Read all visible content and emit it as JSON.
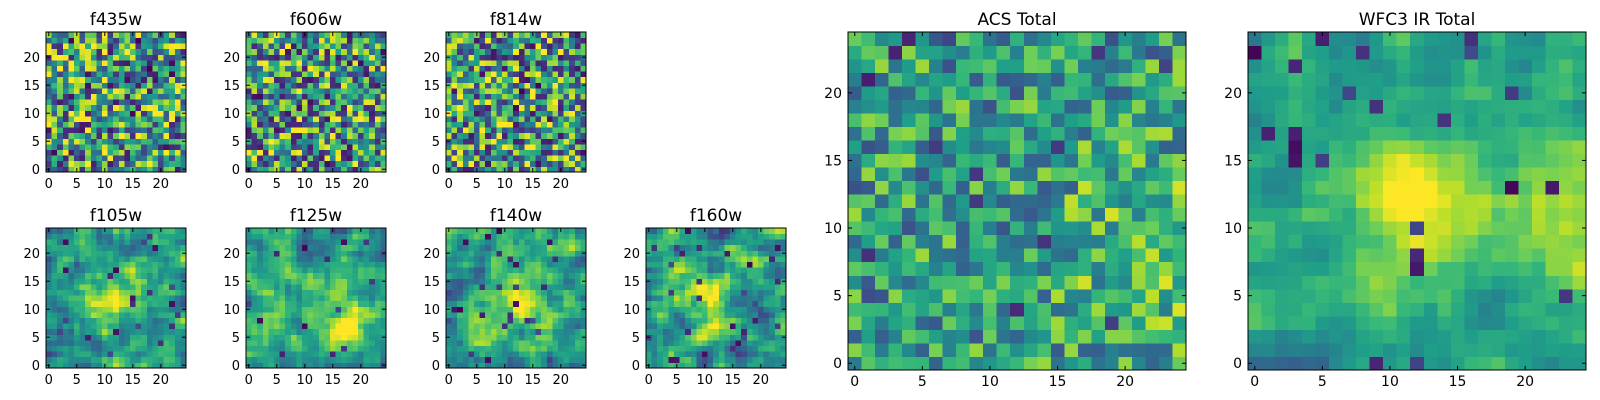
{
  "chart_data": [
    {
      "type": "heatmap",
      "title": "f435w",
      "xlim": [
        -0.5,
        24.5
      ],
      "ylim": [
        -0.5,
        24.5
      ],
      "xticks": [
        0,
        5,
        10,
        15,
        20
      ],
      "yticks": [
        0,
        5,
        10,
        15,
        20
      ],
      "grid_size": [
        25,
        25
      ],
      "colormap": "viridis",
      "seed": 11,
      "smooth": 0,
      "noise": 1.0,
      "blobs": [],
      "dark_rate": 0.05
    },
    {
      "type": "heatmap",
      "title": "f606w",
      "xlim": [
        -0.5,
        24.5
      ],
      "ylim": [
        -0.5,
        24.5
      ],
      "xticks": [
        0,
        5,
        10,
        15,
        20
      ],
      "yticks": [
        0,
        5,
        10,
        15,
        20
      ],
      "grid_size": [
        25,
        25
      ],
      "colormap": "viridis",
      "seed": 23,
      "smooth": 0,
      "noise": 1.0,
      "blobs": [],
      "dark_rate": 0.05
    },
    {
      "type": "heatmap",
      "title": "f814w",
      "xlim": [
        -0.5,
        24.5
      ],
      "ylim": [
        -0.5,
        24.5
      ],
      "xticks": [
        0,
        5,
        10,
        15,
        20
      ],
      "yticks": [
        0,
        5,
        10,
        15,
        20
      ],
      "grid_size": [
        25,
        25
      ],
      "colormap": "viridis",
      "seed": 37,
      "smooth": 0,
      "noise": 1.0,
      "blobs": [],
      "dark_rate": 0.05
    },
    {
      "type": "heatmap",
      "title": "f105w",
      "xlim": [
        -0.5,
        24.5
      ],
      "ylim": [
        -0.5,
        24.5
      ],
      "xticks": [
        0,
        5,
        10,
        15,
        20
      ],
      "yticks": [
        0,
        5,
        10,
        15,
        20
      ],
      "grid_size": [
        25,
        25
      ],
      "colormap": "viridis",
      "seed": 41,
      "smooth": 1,
      "noise": 0.7,
      "blobs": [
        [
          12,
          12,
          4,
          0.9
        ]
      ],
      "dark_rate": 0.03
    },
    {
      "type": "heatmap",
      "title": "f125w",
      "xlim": [
        -0.5,
        24.5
      ],
      "ylim": [
        -0.5,
        24.5
      ],
      "xticks": [
        0,
        5,
        10,
        15,
        20
      ],
      "yticks": [
        0,
        5,
        10,
        15,
        20
      ],
      "grid_size": [
        25,
        25
      ],
      "colormap": "viridis",
      "seed": 53,
      "smooth": 1,
      "noise": 0.7,
      "blobs": [
        [
          18,
          8,
          4,
          0.8
        ]
      ],
      "dark_rate": 0.03
    },
    {
      "type": "heatmap",
      "title": "f140w",
      "xlim": [
        -0.5,
        24.5
      ],
      "ylim": [
        -0.5,
        24.5
      ],
      "xticks": [
        0,
        5,
        10,
        15,
        20
      ],
      "yticks": [
        0,
        5,
        10,
        15,
        20
      ],
      "grid_size": [
        25,
        25
      ],
      "colormap": "viridis",
      "seed": 67,
      "smooth": 1,
      "noise": 0.7,
      "blobs": [
        [
          12,
          12,
          4,
          0.7
        ]
      ],
      "dark_rate": 0.03
    },
    {
      "type": "heatmap",
      "title": "f160w",
      "xlim": [
        -0.5,
        24.5
      ],
      "ylim": [
        -0.5,
        24.5
      ],
      "xticks": [
        0,
        5,
        10,
        15,
        20
      ],
      "yticks": [
        0,
        5,
        10,
        15,
        20
      ],
      "grid_size": [
        25,
        25
      ],
      "colormap": "viridis",
      "seed": 71,
      "smooth": 1,
      "noise": 0.8,
      "blobs": [
        [
          11,
          12,
          4,
          0.6
        ]
      ],
      "dark_rate": 0.04
    },
    {
      "type": "heatmap",
      "title": "ACS Total",
      "xlim": [
        -0.5,
        24.5
      ],
      "ylim": [
        -0.5,
        24.5
      ],
      "xticks": [
        0,
        5,
        10,
        15,
        20
      ],
      "yticks": [
        0,
        5,
        10,
        15,
        20
      ],
      "grid_size": [
        25,
        25
      ],
      "colormap": "viridis",
      "seed": 83,
      "smooth": 0,
      "noise": 0.6,
      "blobs": [
        [
          23,
          8,
          5,
          0.5
        ]
      ],
      "dark_rate": 0.03
    },
    {
      "type": "heatmap",
      "title": "WFC3 IR Total",
      "xlim": [
        -0.5,
        24.5
      ],
      "ylim": [
        -0.5,
        24.5
      ],
      "xticks": [
        0,
        5,
        10,
        15,
        20
      ],
      "yticks": [
        0,
        5,
        10,
        15,
        20
      ],
      "grid_size": [
        25,
        25
      ],
      "colormap": "viridis",
      "seed": 97,
      "smooth": 1,
      "noise": 0.5,
      "blobs": [
        [
          12,
          12,
          3,
          1.0
        ],
        [
          23,
          10,
          3,
          0.6
        ]
      ],
      "dark_rate": 0.04
    }
  ]
}
